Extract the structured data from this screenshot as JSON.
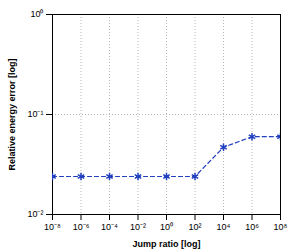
{
  "chart_data": {
    "type": "line",
    "xlabel": "Jump ratio [log]",
    "ylabel": "Relative energy error [log]",
    "x": [
      1e-08,
      1e-06,
      0.0001,
      0.01,
      1,
      100,
      10000,
      1000000,
      100000000
    ],
    "values": [
      0.024,
      0.024,
      0.024,
      0.024,
      0.024,
      0.024,
      0.047,
      0.06,
      0.06
    ],
    "color": "#1f3fbf",
    "marker": "asterisk",
    "line_style": "dashed",
    "log": true,
    "grid": true,
    "xlim": [
      1e-08,
      100000000
    ],
    "ylim": [
      0.01,
      1
    ],
    "xticks": [
      {
        "value": 1e-08,
        "label": "10⁻⁸"
      },
      {
        "value": 1e-06,
        "label": "10⁻⁶"
      },
      {
        "value": 0.0001,
        "label": "10⁻⁴"
      },
      {
        "value": 0.01,
        "label": "10⁻²"
      },
      {
        "value": 1,
        "label": "10⁰"
      },
      {
        "value": 100,
        "label": "10²"
      },
      {
        "value": 10000,
        "label": "10⁴"
      },
      {
        "value": 1000000,
        "label": "10⁶"
      },
      {
        "value": 100000000,
        "label": "10⁸"
      }
    ],
    "yticks": [
      {
        "value": 0.01,
        "label": "10⁻²"
      },
      {
        "value": 0.1,
        "label": "10⁻¹"
      },
      {
        "value": 1,
        "label": "10⁰"
      }
    ]
  }
}
